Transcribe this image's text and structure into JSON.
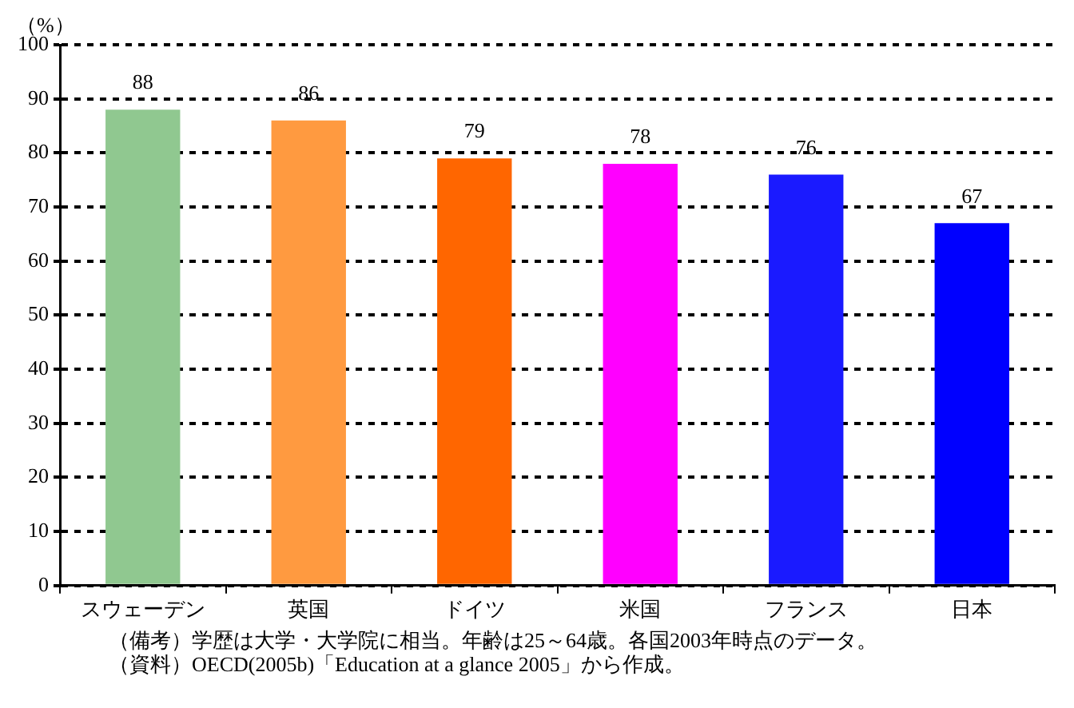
{
  "chart_data": {
    "type": "bar",
    "ylabel": "（%）",
    "categories": [
      "スウェーデン",
      "英国",
      "ドイツ",
      "米国",
      "フランス",
      "日本"
    ],
    "values": [
      88,
      86,
      79,
      78,
      76,
      67
    ],
    "colors": [
      "#90c890",
      "#ff9a40",
      "#ff6600",
      "#ff00ff",
      "#1a1aff",
      "#0000ff"
    ],
    "ylim": [
      0,
      100
    ],
    "yticks": [
      0,
      10,
      20,
      30,
      40,
      50,
      60,
      70,
      80,
      90,
      100
    ],
    "grid": "y",
    "data_labels": true,
    "legend": false,
    "annotations": [
      "（備考）学歴は大学・大学院に相当。年齢は25～64歳。各国2003年時点のデータ。",
      "（資料）OECD(2005b)「Education at a glance 2005」から作成。"
    ]
  }
}
